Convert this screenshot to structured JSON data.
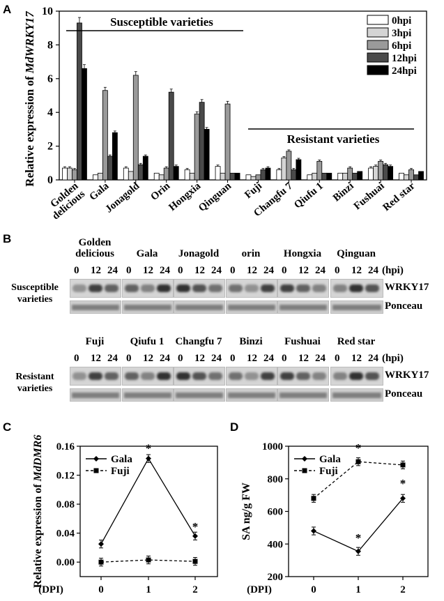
{
  "panels": {
    "a": "A",
    "b": "B",
    "c": "C",
    "d": "D"
  },
  "chart_data": [
    {
      "type": "bar",
      "ylabel_prefix": "Relative expression of ",
      "ylabel_gene": "MdWRKY17",
      "ylim": [
        0,
        10
      ],
      "yticks": [
        "0",
        "2",
        "4",
        "6",
        "8",
        "10"
      ],
      "categories": [
        "Golden delicious",
        "Gala",
        "Jonagold",
        "Orin",
        "Hongxia",
        "Qinguan",
        "Fuji",
        "Changfu 7",
        "Qiufu 1",
        "Binzi",
        "Fushuai",
        "Red star"
      ],
      "series": [
        {
          "name": "0hpi",
          "color": "#ffffff",
          "values": [
            0.7,
            0.3,
            0.7,
            0.4,
            0.6,
            0.8,
            0.3,
            0.6,
            0.3,
            0.4,
            0.7,
            0.4
          ]
        },
        {
          "name": "3hpi",
          "color": "#d4d4d4",
          "values": [
            0.7,
            0.4,
            0.5,
            0.3,
            0.4,
            0.4,
            0.2,
            1.3,
            0.4,
            0.4,
            0.8,
            0.3
          ]
        },
        {
          "name": "6hpi",
          "color": "#9a9a9a",
          "values": [
            0.6,
            5.3,
            6.2,
            0.7,
            3.9,
            4.5,
            0.3,
            1.7,
            1.1,
            0.7,
            1.1,
            0.6
          ]
        },
        {
          "name": "12hpi",
          "color": "#4a4a4a",
          "values": [
            9.3,
            1.4,
            0.9,
            5.2,
            4.6,
            0.4,
            0.6,
            0.6,
            0.4,
            0.4,
            0.9,
            0.3
          ]
        },
        {
          "name": "24hpi",
          "color": "#000000",
          "values": [
            6.6,
            2.8,
            1.4,
            0.8,
            3.0,
            0.4,
            0.7,
            1.2,
            0.4,
            0.5,
            0.8,
            0.5
          ]
        }
      ],
      "group_labels": {
        "susceptible": "Susceptible varieties",
        "resistant": "Resistant varieties"
      }
    },
    {
      "type": "line",
      "ylabel_prefix": "Relative expression of ",
      "ylabel_gene": "MdDMR6",
      "xlabel": "(DPI)",
      "x": [
        0,
        1,
        2
      ],
      "ylim": [
        -0.02,
        0.16
      ],
      "yticks": [
        "0.00",
        "0.04",
        "0.08",
        "0.12",
        "0.16"
      ],
      "series": [
        {
          "name": "Gala",
          "values": [
            0.025,
            0.143,
            0.036
          ],
          "style": "solid",
          "marker": "diamond"
        },
        {
          "name": "Fuji",
          "values": [
            0.0,
            0.003,
            0.001
          ],
          "style": "dashed",
          "marker": "square"
        }
      ],
      "annotations": [
        "*",
        "*"
      ]
    },
    {
      "type": "line",
      "ylabel": "SA ng/g FW",
      "xlabel": "(DPI)",
      "x": [
        0,
        1,
        2
      ],
      "ylim": [
        200,
        1000
      ],
      "yticks": [
        "200",
        "400",
        "600",
        "800",
        "1000"
      ],
      "series": [
        {
          "name": "Gala",
          "values": [
            480,
            355,
            680
          ],
          "style": "solid",
          "marker": "diamond"
        },
        {
          "name": "Fuji",
          "values": [
            680,
            905,
            885
          ],
          "style": "dashed",
          "marker": "square"
        }
      ],
      "annotations": [
        "*",
        "*",
        "*"
      ]
    }
  ],
  "blot": {
    "timepoints": [
      "0",
      "12",
      "24"
    ],
    "unit": "(hpi)",
    "susceptible_row": "Susceptible varieties",
    "resistant_row": "Resistant varieties",
    "protein": "WRKY17",
    "loading": "Ponceau",
    "top_varieties": [
      "Golden delicious",
      "Gala",
      "Jonagold",
      "orin",
      "Hongxia",
      "Qinguan"
    ],
    "bottom_varieties": [
      "Fuji",
      "Qiufu 1",
      "Changfu 7",
      "Binzi",
      "Fushuai",
      "Red star"
    ]
  }
}
